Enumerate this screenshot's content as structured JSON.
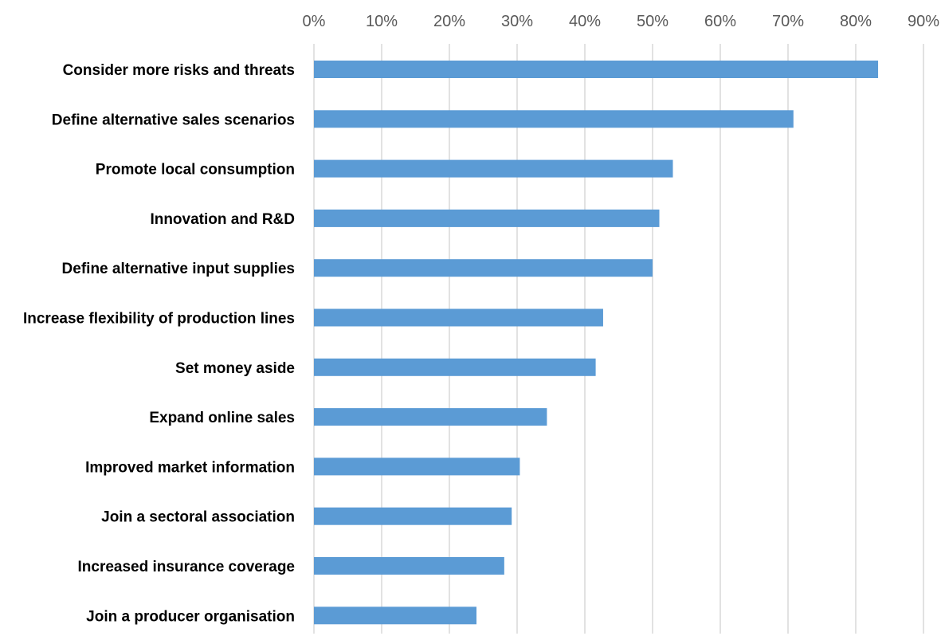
{
  "chart_data": {
    "type": "bar",
    "orientation": "horizontal",
    "categories": [
      "Consider more risks and threats",
      "Define alternative sales scenarios",
      "Promote local consumption",
      "Innovation and R&D",
      "Define alternative input supplies",
      "Increase flexibility of production lines",
      "Set money aside",
      "Expand online sales",
      "Improved market information",
      "Join a sectoral association",
      "Increased insurance coverage",
      "Join a producer organisation"
    ],
    "values": [
      83.3,
      70.8,
      53.0,
      51.0,
      50.0,
      42.7,
      41.6,
      34.4,
      30.4,
      29.2,
      28.1,
      24.0
    ],
    "unit": "%",
    "xlim": [
      0,
      90
    ],
    "x_ticks": [
      "0%",
      "10%",
      "20%",
      "30%",
      "40%",
      "50%",
      "60%",
      "70%",
      "80%",
      "90%"
    ],
    "x_axis_position": "top",
    "grid": "vertical",
    "legend": "none",
    "title": "",
    "xlabel": "",
    "ylabel": "",
    "bar_color": "#5b9bd5",
    "grid_color": "#d9d9d9"
  }
}
